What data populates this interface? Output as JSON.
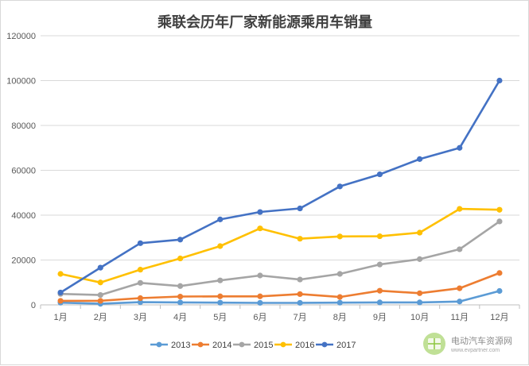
{
  "chart_data": {
    "type": "line",
    "title": "乘联会历年厂家新能源乘用车销量",
    "categories": [
      "1月",
      "2月",
      "3月",
      "4月",
      "5月",
      "6月",
      "7月",
      "8月",
      "9月",
      "10月",
      "11月",
      "12月"
    ],
    "ylim": [
      0,
      120000
    ],
    "yticks": [
      "0",
      "20000",
      "40000",
      "60000",
      "80000",
      "100000",
      "120000"
    ],
    "grid": true,
    "legend_position": "bottom",
    "series": [
      {
        "name": "2013",
        "color": "#5b9bd5",
        "values": [
          1000,
          500,
          1200,
          1100,
          1000,
          900,
          900,
          1000,
          1100,
          1100,
          1500,
          6200
        ]
      },
      {
        "name": "2014",
        "color": "#ed7d31",
        "values": [
          1800,
          1800,
          3000,
          3700,
          3800,
          3800,
          4800,
          3500,
          6300,
          5200,
          7400,
          14200
        ]
      },
      {
        "name": "2015",
        "color": "#a5a5a5",
        "values": [
          4900,
          4400,
          9800,
          8400,
          10900,
          13100,
          11300,
          13800,
          18000,
          20400,
          24800,
          37200
        ]
      },
      {
        "name": "2016",
        "color": "#ffc000",
        "values": [
          13800,
          10000,
          15700,
          20700,
          26200,
          34100,
          29500,
          30500,
          30600,
          32200,
          42800,
          42400
        ]
      },
      {
        "name": "2017",
        "color": "#4472c4",
        "values": [
          5500,
          16600,
          27500,
          29100,
          38100,
          41400,
          43000,
          52800,
          58200,
          65000,
          70000,
          100000
        ]
      }
    ]
  },
  "watermark": {
    "text": "电动汽车资源网",
    "url": "www.evpartner.com",
    "icon": "leaf-logo-icon"
  }
}
